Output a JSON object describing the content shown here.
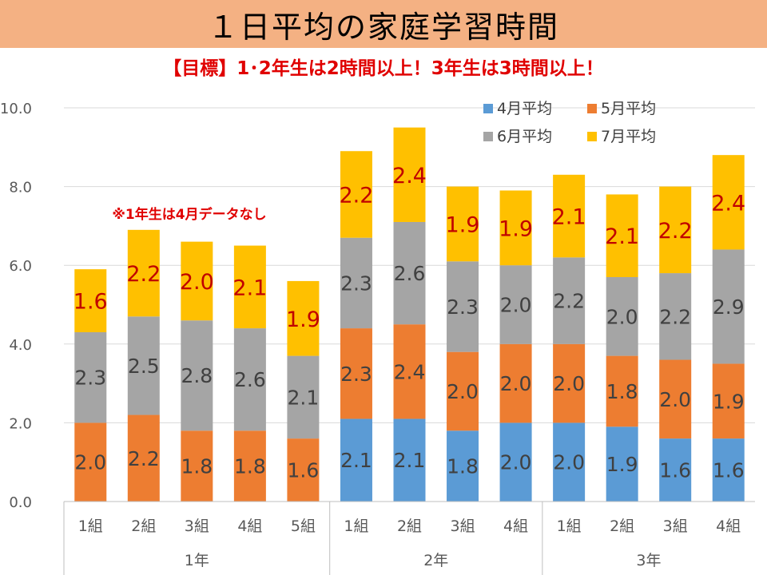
{
  "page": {
    "title": "１日平均の家庭学習時間",
    "subtitle": "【目標】1･2年生は2時間以上！3年生は3時間以上！"
  },
  "chart_data": {
    "type": "bar",
    "stacked": true,
    "ylim": [
      0,
      10
    ],
    "yticks": [
      "0.0",
      "2.0",
      "4.0",
      "6.0",
      "8.0",
      "10.0"
    ],
    "grid": true,
    "legend_position": "top-right",
    "annotation": "※1年生は4月データなし",
    "categories": [
      "1組",
      "2組",
      "3組",
      "4組",
      "5組",
      "1組",
      "2組",
      "3組",
      "4組",
      "1組",
      "2組",
      "3組",
      "4組"
    ],
    "groups": [
      {
        "label": "1年",
        "count": 5
      },
      {
        "label": "2年",
        "count": 4
      },
      {
        "label": "3年",
        "count": 4
      }
    ],
    "series": [
      {
        "name": "4月平均",
        "color": "#5b9bd5",
        "label_color": "#404040",
        "values": [
          0,
          0,
          0,
          0,
          0,
          2.1,
          2.1,
          1.8,
          2.0,
          2.0,
          1.9,
          1.6,
          1.6
        ],
        "labels": [
          "",
          "",
          "",
          "",
          "",
          "2.1",
          "2.1",
          "1.8",
          "2.0",
          "2.0",
          "1.9",
          "1.6",
          "1.6"
        ]
      },
      {
        "name": "5月平均",
        "color": "#ed7d31",
        "label_color": "#404040",
        "values": [
          2.0,
          2.2,
          1.8,
          1.8,
          1.6,
          2.3,
          2.4,
          2.0,
          2.0,
          2.0,
          1.8,
          2.0,
          1.9
        ],
        "labels": [
          "2.0",
          "2.2",
          "1.8",
          "1.8",
          "1.6",
          "2.3",
          "2.4",
          "2.0",
          "2.0",
          "2.0",
          "1.8",
          "2.0",
          "1.9"
        ]
      },
      {
        "name": "6月平均",
        "color": "#a5a5a5",
        "label_color": "#404040",
        "values": [
          2.3,
          2.5,
          2.8,
          2.6,
          2.1,
          2.3,
          2.6,
          2.3,
          2.0,
          2.2,
          2.0,
          2.2,
          2.9
        ],
        "labels": [
          "2.3",
          "2.5",
          "2.8",
          "2.6",
          "2.1",
          "2.3",
          "2.6",
          "2.3",
          "2.0",
          "2.2",
          "2.0",
          "2.2",
          "2.9"
        ]
      },
      {
        "name": "7月平均",
        "color": "#ffc000",
        "label_color": "#c00000",
        "values": [
          1.6,
          2.2,
          2.0,
          2.1,
          1.9,
          2.2,
          2.4,
          1.9,
          1.9,
          2.1,
          2.1,
          2.2,
          2.4
        ],
        "labels": [
          "1.6",
          "2.2",
          "2.0",
          "2.1",
          "1.9",
          "2.2",
          "2.4",
          "1.9",
          "1.9",
          "2.1",
          "2.1",
          "2.2",
          "2.4"
        ]
      }
    ]
  }
}
